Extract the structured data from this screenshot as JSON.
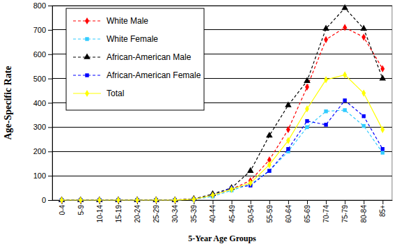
{
  "chart_data": {
    "type": "line",
    "x_label": "5-Year Age Groups",
    "y_label": "Age-Specific Rate",
    "categories": [
      "0-4",
      "5-9",
      "10-14",
      "15-19",
      "20-24",
      "25-29",
      "30-34",
      "35-39",
      "40-44",
      "45-49",
      "50-54",
      "55-59",
      "60-64",
      "65-69",
      "70-74",
      "75-79",
      "80-84",
      "85+"
    ],
    "series": [
      {
        "name": "White Male",
        "color": "#ff0000",
        "marker": "diamond",
        "line_style": "dashed",
        "values": [
          0,
          0,
          0,
          0,
          0,
          0,
          0,
          5,
          20,
          45,
          80,
          165,
          290,
          465,
          660,
          710,
          670,
          540
        ]
      },
      {
        "name": "White Female",
        "color": "#33ccff",
        "marker": "square",
        "line_style": "dashed",
        "values": [
          0,
          0,
          0,
          0,
          0,
          0,
          0,
          3,
          15,
          40,
          65,
          120,
          200,
          300,
          365,
          370,
          305,
          195
        ]
      },
      {
        "name": "African-American Male",
        "color": "#000000",
        "marker": "triangle",
        "line_style": "dashed",
        "values": [
          0,
          0,
          0,
          0,
          0,
          0,
          0,
          5,
          25,
          50,
          120,
          265,
          390,
          490,
          705,
          790,
          705,
          500
        ]
      },
      {
        "name": "African-American Female",
        "color": "#0000ff",
        "marker": "square",
        "line_style": "dashed",
        "values": [
          0,
          0,
          0,
          0,
          0,
          0,
          0,
          3,
          20,
          50,
          60,
          120,
          210,
          325,
          310,
          410,
          345,
          210
        ]
      },
      {
        "name": "Total",
        "color": "#ffff00",
        "marker": "diamond",
        "line_style": "solid",
        "values": [
          0,
          0,
          0,
          0,
          0,
          0,
          0,
          3,
          20,
          45,
          70,
          145,
          245,
          375,
          495,
          515,
          440,
          290
        ]
      }
    ],
    "ylim": [
      0,
      800
    ],
    "yticks": [
      0,
      100,
      200,
      300,
      400,
      500,
      600,
      700,
      800
    ],
    "grid": true,
    "legend": "upper left"
  }
}
